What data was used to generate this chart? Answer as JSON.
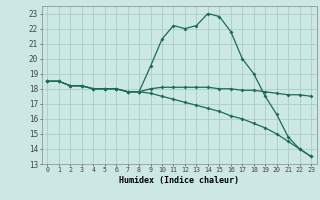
{
  "xlabel": "Humidex (Indice chaleur)",
  "background_color": "#cce8e4",
  "grid_color": "#aaccc8",
  "line_color": "#1a6b5a",
  "xlim": [
    -0.5,
    23.5
  ],
  "ylim": [
    13,
    23.5
  ],
  "yticks": [
    13,
    14,
    15,
    16,
    17,
    18,
    19,
    20,
    21,
    22,
    23
  ],
  "xticks": [
    0,
    1,
    2,
    3,
    4,
    5,
    6,
    7,
    8,
    9,
    10,
    11,
    12,
    13,
    14,
    15,
    16,
    17,
    18,
    19,
    20,
    21,
    22,
    23
  ],
  "line1_x": [
    0,
    1,
    2,
    3,
    4,
    5,
    6,
    7,
    8,
    9,
    10,
    11,
    12,
    13,
    14,
    15,
    16,
    17,
    18,
    19,
    20,
    21,
    22,
    23
  ],
  "line1_y": [
    18.5,
    18.5,
    18.2,
    18.2,
    18.0,
    18.0,
    18.0,
    17.8,
    17.8,
    19.5,
    21.3,
    22.2,
    22.0,
    22.2,
    23.0,
    22.8,
    21.8,
    20.0,
    19.0,
    17.5,
    16.3,
    14.8,
    14.0,
    13.5
  ],
  "line2_x": [
    0,
    1,
    2,
    3,
    4,
    5,
    6,
    7,
    8,
    9,
    10,
    11,
    12,
    13,
    14,
    15,
    16,
    17,
    18,
    19,
    20,
    21,
    22,
    23
  ],
  "line2_y": [
    18.5,
    18.5,
    18.2,
    18.2,
    18.0,
    18.0,
    18.0,
    17.8,
    17.8,
    18.0,
    18.1,
    18.1,
    18.1,
    18.1,
    18.1,
    18.0,
    18.0,
    17.9,
    17.9,
    17.8,
    17.7,
    17.6,
    17.6,
    17.5
  ],
  "line3_x": [
    0,
    1,
    2,
    3,
    4,
    5,
    6,
    7,
    8,
    9,
    10,
    11,
    12,
    13,
    14,
    15,
    16,
    17,
    18,
    19,
    20,
    21,
    22,
    23
  ],
  "line3_y": [
    18.5,
    18.5,
    18.2,
    18.2,
    18.0,
    18.0,
    18.0,
    17.8,
    17.8,
    17.7,
    17.5,
    17.3,
    17.1,
    16.9,
    16.7,
    16.5,
    16.2,
    16.0,
    15.7,
    15.4,
    15.0,
    14.5,
    14.0,
    13.5
  ]
}
